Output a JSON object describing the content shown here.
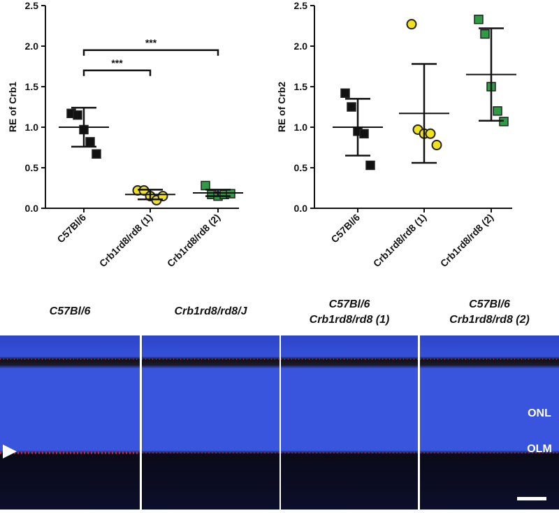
{
  "chart_data": [
    {
      "type": "dot",
      "ylabel": "RE of Crb1",
      "categories": [
        "C57Bl/6",
        "Crb1rd8/rd8 (1)",
        "Crb1rd8/rd8 (2)"
      ],
      "values": [
        [
          1.17,
          1.15,
          0.97,
          0.82,
          0.67
        ],
        [
          0.22,
          0.22,
          0.15,
          0.1,
          0.15
        ],
        [
          0.28,
          0.17,
          0.15,
          0.17,
          0.18
        ]
      ],
      "mean": [
        1.0,
        0.17,
        0.19
      ],
      "sd": [
        0.24,
        0.06,
        0.04
      ],
      "colors": [
        "#111111",
        "#f2e21c",
        "#2e9c45"
      ],
      "markers": [
        "square",
        "circle",
        "square"
      ],
      "ylim": [
        0,
        2.5
      ],
      "yticks": [
        {
          "value": 0,
          "label": "0.0"
        },
        0.5,
        {
          "value": 1,
          "label": "1.0"
        },
        1.5,
        {
          "value": 2,
          "label": "2.0"
        },
        2.5
      ],
      "annotations": [
        {
          "text": "***",
          "from": 0,
          "to": 1,
          "y": 1.7
        },
        {
          "text": "***",
          "from": 0,
          "to": 2,
          "y": 1.95
        }
      ]
    },
    {
      "type": "dot",
      "ylabel": "RE of Crb2",
      "categories": [
        "C57Bl/6",
        "Crb1rd8/rd8 (1)",
        "Crb1rd8/rd8 (2)"
      ],
      "values": [
        [
          1.42,
          1.25,
          0.95,
          0.92,
          0.53
        ],
        [
          2.27,
          0.97,
          0.92,
          0.92,
          0.78
        ],
        [
          2.33,
          2.15,
          1.5,
          1.2,
          1.07
        ]
      ],
      "mean": [
        1.0,
        1.17,
        1.65
      ],
      "sd": [
        0.35,
        0.61,
        0.57
      ],
      "colors": [
        "#111111",
        "#f2e21c",
        "#2e9c45"
      ],
      "markers": [
        "square",
        "circle",
        "square"
      ],
      "ylim": [
        0,
        2.5
      ],
      "yticks": [
        {
          "value": 0,
          "label": "0.0"
        },
        0.5,
        {
          "value": 1,
          "label": "1.0"
        },
        1.5,
        {
          "value": 2,
          "label": "2.0"
        },
        2.5
      ]
    }
  ],
  "panels": [
    {
      "title": [
        "C57Bl/6"
      ]
    },
    {
      "title": [
        "Crb1rd8/rd8/J"
      ]
    },
    {
      "title": [
        "C57Bl/6",
        "Crb1rd8/rd8 (1)"
      ]
    },
    {
      "title": [
        "C57Bl/6",
        "Crb1rd8/rd8 (2)"
      ],
      "labels": [
        "ONL",
        "OLM"
      ]
    }
  ]
}
